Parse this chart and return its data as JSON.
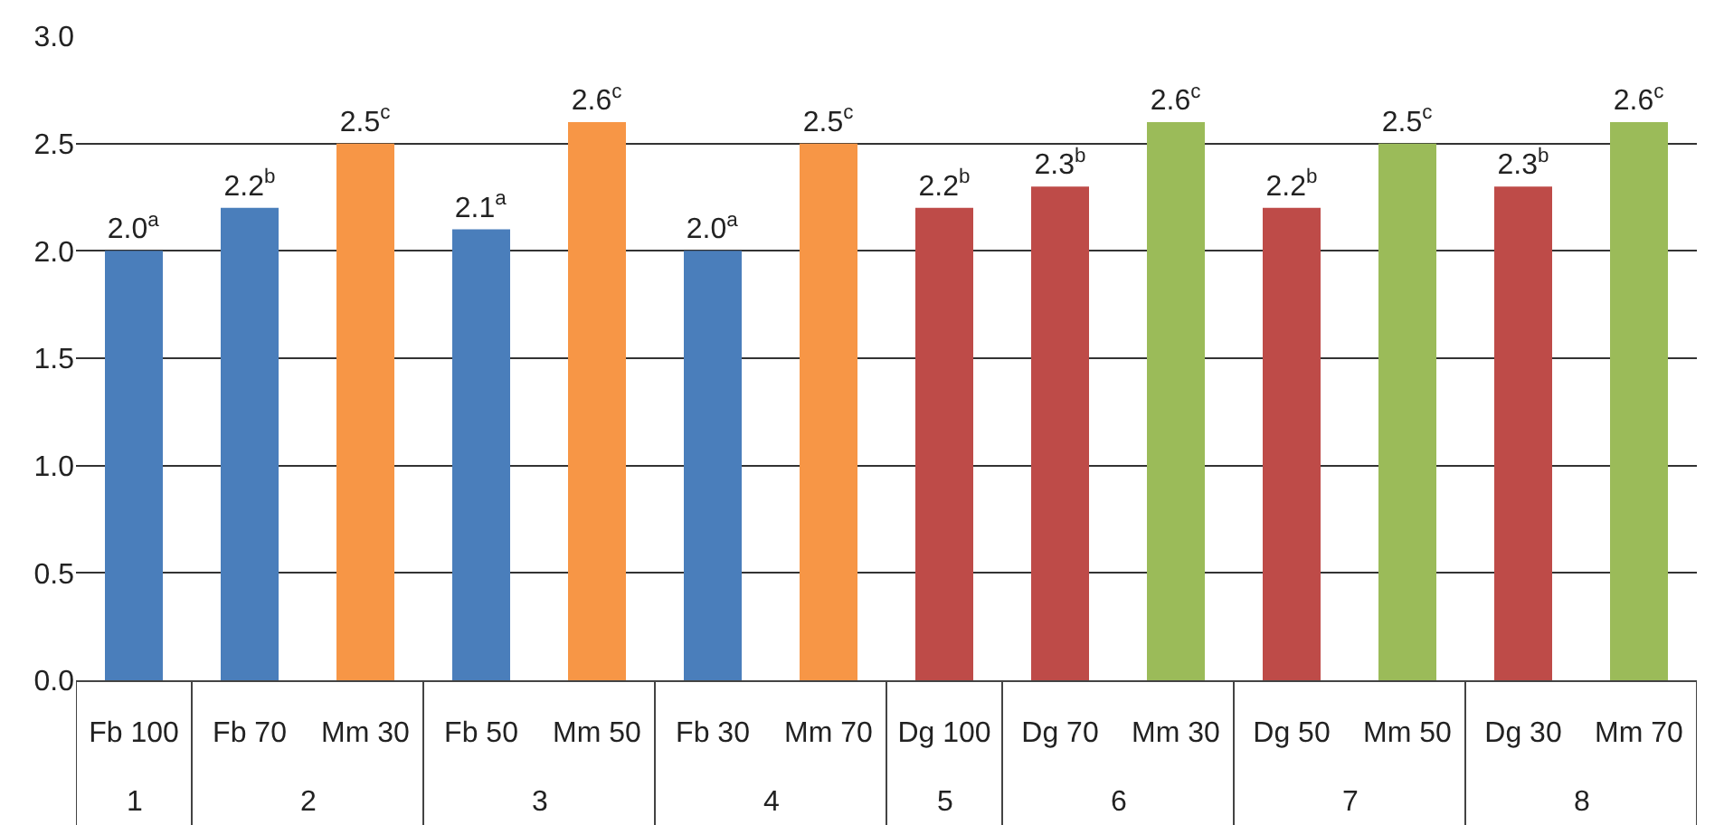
{
  "chart_data": {
    "type": "bar",
    "categories": [
      "Fb 100",
      "Fb 70",
      "Mm 30",
      "Fb 50",
      "Mm 50",
      "Fb 30",
      "Mm 70",
      "Dg 100",
      "Dg 70",
      "Mm 30",
      "Dg 50",
      "Mm 50",
      "Dg 30",
      "Mm 70"
    ],
    "values": [
      2.0,
      2.2,
      2.5,
      2.1,
      2.6,
      2.0,
      2.5,
      2.2,
      2.3,
      2.6,
      2.2,
      2.5,
      2.3,
      2.6
    ],
    "colors": [
      "#4a7ebb",
      "#4a7ebb",
      "#f79646",
      "#4a7ebb",
      "#f79646",
      "#4a7ebb",
      "#f79646",
      "#be4b48",
      "#be4b48",
      "#9bbb59",
      "#be4b48",
      "#9bbb59",
      "#be4b48",
      "#9bbb59"
    ],
    "value_labels": [
      "2.0$^{a}$",
      "2.2$^{b}$",
      "2.5$^{c}$",
      "2.1$^{a}$",
      "2.6$^{c}$",
      "2.0$^{a}$",
      "2.5$^{c}$",
      "2.2$^{b}$",
      "2.3$^{b}$",
      "2.6$^{c}$",
      "2.2$^{b}$",
      "2.5$^{c}$",
      "2.3$^{b}$",
      "2.6$^{c}$"
    ],
    "annotations": [
      "1",
      "2",
      "3",
      "4",
      "5",
      "6",
      "7",
      "8"
    ],
    "ylim": [
      0,
      3
    ],
    "yticks": [
      {
        "value": 0,
        "label": "0.0"
      },
      {
        "value": 0.5,
        "label": "0.5"
      },
      {
        "value": 1,
        "label": "1.0"
      },
      {
        "value": 1.5,
        "label": "1.5"
      },
      {
        "value": 2,
        "label": "2.0"
      },
      {
        "value": 2.5,
        "label": "2.5"
      },
      {
        "value": 3,
        "label": "3.0"
      }
    ],
    "grid": "y"
  }
}
